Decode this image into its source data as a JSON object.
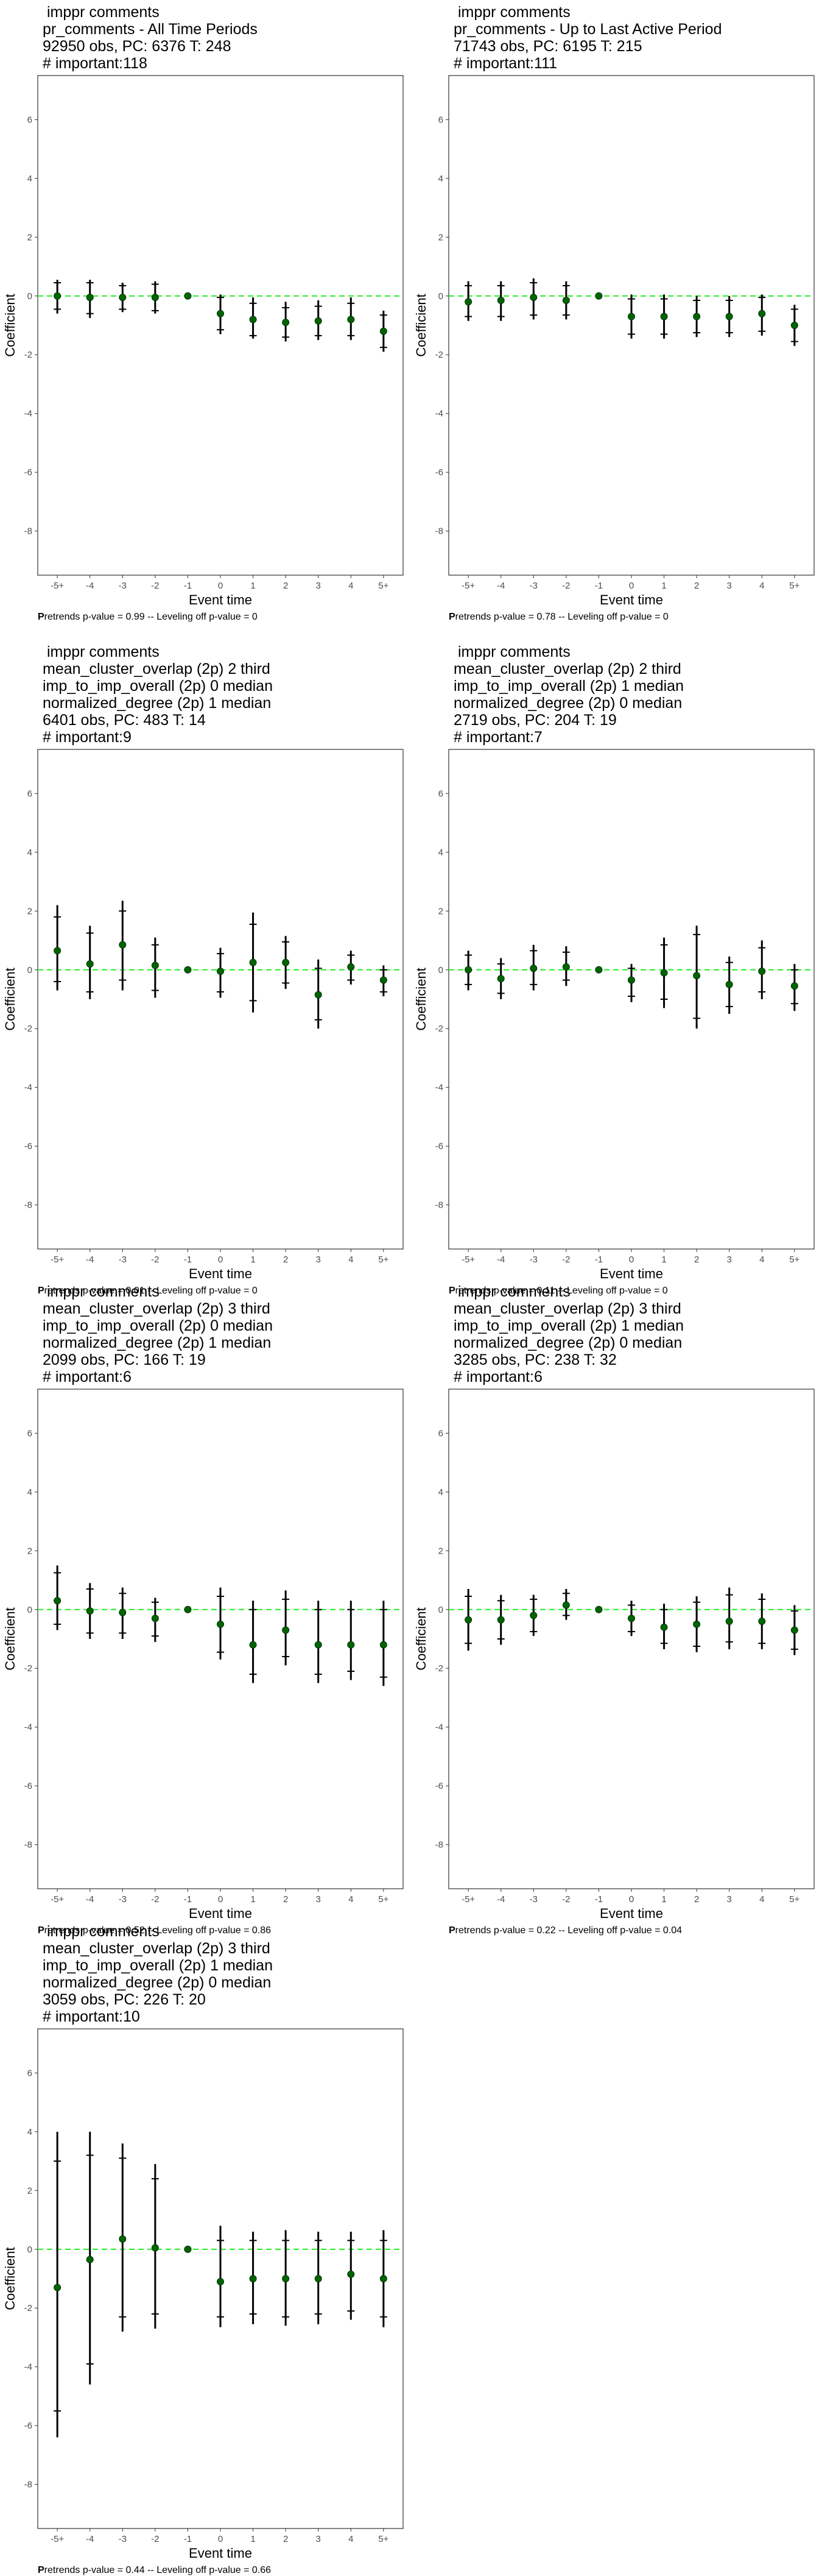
{
  "figure": {
    "panels": [
      {
        "title_lines": [
          " imppr comments",
          "pr_comments - All Time Periods",
          "92950 obs, PC: 6376 T: 248",
          "# important:118"
        ],
        "caption_lead": "P",
        "caption_rest": "retrends p-value = 0.99 -- Leveling off p-value = 0"
      },
      {
        "title_lines": [
          " imppr comments",
          "pr_comments - Up to Last Active Period",
          "71743 obs, PC: 6195 T: 215",
          "# important:111"
        ],
        "caption_lead": "P",
        "caption_rest": "retrends p-value = 0.78 -- Leveling off p-value = 0"
      },
      {
        "title_lines": [
          " imppr comments",
          "mean_cluster_overlap (2p) 2 third",
          "imp_to_imp_overall (2p) 0 median",
          "normalized_degree (2p) 1 median",
          "6401 obs, PC: 483 T: 14",
          "# important:9"
        ],
        "caption_lead": "P",
        "caption_rest": "retrends p-value = 0.01 -- Leveling off p-value = 0"
      },
      {
        "title_lines": [
          " imppr comments",
          "mean_cluster_overlap (2p) 2 third",
          "imp_to_imp_overall (2p) 1 median",
          "normalized_degree (2p) 0 median",
          "2719 obs, PC: 204 T: 19",
          "# important:7"
        ],
        "caption_lead": "P",
        "caption_rest": "retrends p-value = 0.11 -- Leveling off p-value = 0"
      },
      {
        "title_lines": [
          " imppr comments",
          "mean_cluster_overlap (2p) 3 third",
          "imp_to_imp_overall (2p) 0 median",
          "normalized_degree (2p) 1 median",
          "2099 obs, PC: 166 T: 19",
          "# important:6"
        ],
        "caption_lead": "P",
        "caption_rest": "retrends p-value = 0.52 -- Leveling off p-value = 0.86"
      },
      {
        "title_lines": [
          " imppr comments",
          "mean_cluster_overlap (2p) 3 third",
          "imp_to_imp_overall (2p) 1 median",
          "normalized_degree (2p) 0 median",
          "3285 obs, PC: 238 T: 32",
          "# important:6"
        ],
        "caption_lead": "P",
        "caption_rest": "retrends p-value = 0.22 -- Leveling off p-value = 0.04"
      },
      {
        "title_lines": [
          " imppr comments",
          "mean_cluster_overlap (2p) 3 third",
          "imp_to_imp_overall (2p) 1 median",
          "normalized_degree (2p) 0 median",
          "3059 obs, PC: 226 T: 20",
          "# important:10"
        ],
        "caption_lead": "P",
        "caption_rest": "retrends p-value = 0.44 -- Leveling off p-value = 0.66"
      }
    ]
  },
  "chart_data": [
    {
      "type": "scatter",
      "xlabel": "Event time",
      "ylabel": "Coefficient",
      "categories": [
        "-5+",
        "-4",
        "-3",
        "-2",
        "-1",
        "0",
        "1",
        "2",
        "3",
        "4",
        "5+"
      ],
      "yticks": [
        -8,
        -6,
        -4,
        -2,
        0,
        2,
        4,
        6
      ],
      "ylim": [
        -9.5,
        7.5
      ],
      "reference_line": 0,
      "grid": false,
      "estimates": [
        0,
        -0.05,
        -0.05,
        -0.05,
        0,
        -0.6,
        -0.8,
        -0.9,
        -0.85,
        -0.8,
        -1.2
      ],
      "ci95": [
        [
          -0.6,
          0.55
        ],
        [
          -0.75,
          0.55
        ],
        [
          -0.55,
          0.45
        ],
        [
          -0.6,
          0.5
        ],
        [
          0,
          0
        ],
        [
          -1.3,
          0.05
        ],
        [
          -1.45,
          -0.05
        ],
        [
          -1.55,
          -0.2
        ],
        [
          -1.5,
          -0.15
        ],
        [
          -1.5,
          -0.05
        ],
        [
          -1.9,
          -0.5
        ]
      ],
      "ci90": [
        [
          -0.45,
          0.45
        ],
        [
          -0.6,
          0.45
        ],
        [
          -0.45,
          0.35
        ],
        [
          -0.5,
          0.4
        ],
        [
          0,
          0
        ],
        [
          -1.15,
          -0.05
        ],
        [
          -1.35,
          -0.25
        ],
        [
          -1.4,
          -0.4
        ],
        [
          -1.35,
          -0.35
        ],
        [
          -1.35,
          -0.25
        ],
        [
          -1.75,
          -0.65
        ]
      ]
    },
    {
      "type": "scatter",
      "xlabel": "Event time",
      "ylabel": "Coefficient",
      "categories": [
        "-5+",
        "-4",
        "-3",
        "-2",
        "-1",
        "0",
        "1",
        "2",
        "3",
        "4",
        "5+"
      ],
      "yticks": [
        -8,
        -6,
        -4,
        -2,
        0,
        2,
        4,
        6
      ],
      "ylim": [
        -9.5,
        7.5
      ],
      "reference_line": 0,
      "grid": false,
      "estimates": [
        -0.2,
        -0.15,
        -0.05,
        -0.15,
        0,
        -0.7,
        -0.7,
        -0.7,
        -0.7,
        -0.6,
        -1.0
      ],
      "ci95": [
        [
          -0.85,
          0.5
        ],
        [
          -0.85,
          0.5
        ],
        [
          -0.8,
          0.6
        ],
        [
          -0.8,
          0.5
        ],
        [
          0,
          0
        ],
        [
          -1.45,
          0.05
        ],
        [
          -1.45,
          0.05
        ],
        [
          -1.4,
          0.0
        ],
        [
          -1.4,
          0.0
        ],
        [
          -1.35,
          0.05
        ],
        [
          -1.7,
          -0.3
        ]
      ],
      "ci90": [
        [
          -0.7,
          0.35
        ],
        [
          -0.7,
          0.35
        ],
        [
          -0.65,
          0.45
        ],
        [
          -0.65,
          0.35
        ],
        [
          0,
          0
        ],
        [
          -1.3,
          -0.1
        ],
        [
          -1.3,
          -0.1
        ],
        [
          -1.25,
          -0.15
        ],
        [
          -1.25,
          -0.15
        ],
        [
          -1.2,
          -0.05
        ],
        [
          -1.55,
          -0.45
        ]
      ]
    },
    {
      "type": "scatter",
      "xlabel": "Event time",
      "ylabel": "Coefficient",
      "categories": [
        "-5+",
        "-4",
        "-3",
        "-2",
        "-1",
        "0",
        "1",
        "2",
        "3",
        "4",
        "5+"
      ],
      "yticks": [
        -8,
        -6,
        -4,
        -2,
        0,
        2,
        4,
        6
      ],
      "ylim": [
        -9.5,
        7.5
      ],
      "reference_line": 0,
      "grid": false,
      "estimates": [
        0.65,
        0.2,
        0.85,
        0.15,
        0,
        -0.05,
        0.25,
        0.25,
        -0.85,
        0.1,
        -0.35
      ],
      "ci95": [
        [
          -0.7,
          2.2
        ],
        [
          -1.0,
          1.5
        ],
        [
          -0.7,
          2.35
        ],
        [
          -0.95,
          1.1
        ],
        [
          0,
          0
        ],
        [
          -0.95,
          0.75
        ],
        [
          -1.45,
          1.95
        ],
        [
          -0.65,
          1.15
        ],
        [
          -2.0,
          0.35
        ],
        [
          -0.5,
          0.65
        ],
        [
          -0.9,
          0.15
        ]
      ],
      "ci90": [
        [
          -0.4,
          1.8
        ],
        [
          -0.75,
          1.25
        ],
        [
          -0.35,
          2.0
        ],
        [
          -0.7,
          0.85
        ],
        [
          0,
          0
        ],
        [
          -0.75,
          0.55
        ],
        [
          -1.05,
          1.55
        ],
        [
          -0.45,
          0.95
        ],
        [
          -1.7,
          0.05
        ],
        [
          -0.35,
          0.5
        ],
        [
          -0.75,
          0.0
        ]
      ]
    },
    {
      "type": "scatter",
      "xlabel": "Event time",
      "ylabel": "Coefficient",
      "categories": [
        "-5+",
        "-4",
        "-3",
        "-2",
        "-1",
        "0",
        "1",
        "2",
        "3",
        "4",
        "5+"
      ],
      "yticks": [
        -8,
        -6,
        -4,
        -2,
        0,
        2,
        4,
        6
      ],
      "ylim": [
        -9.5,
        7.5
      ],
      "reference_line": 0,
      "grid": false,
      "estimates": [
        0,
        -0.3,
        0.05,
        0.1,
        0,
        -0.35,
        -0.1,
        -0.2,
        -0.5,
        -0.05,
        -0.55
      ],
      "ci95": [
        [
          -0.7,
          0.65
        ],
        [
          -1.0,
          0.4
        ],
        [
          -0.7,
          0.85
        ],
        [
          -0.55,
          0.8
        ],
        [
          0,
          0
        ],
        [
          -1.1,
          0.2
        ],
        [
          -1.3,
          1.1
        ],
        [
          -2.0,
          1.5
        ],
        [
          -1.5,
          0.45
        ],
        [
          -1.0,
          1.0
        ],
        [
          -1.4,
          0.2
        ]
      ],
      "ci90": [
        [
          -0.5,
          0.5
        ],
        [
          -0.8,
          0.2
        ],
        [
          -0.5,
          0.65
        ],
        [
          -0.35,
          0.6
        ],
        [
          0,
          0
        ],
        [
          -0.9,
          0.05
        ],
        [
          -1.0,
          0.85
        ],
        [
          -1.65,
          1.2
        ],
        [
          -1.25,
          0.25
        ],
        [
          -0.75,
          0.75
        ],
        [
          -1.15,
          0.0
        ]
      ]
    },
    {
      "type": "scatter",
      "xlabel": "Event time",
      "ylabel": "Coefficient",
      "categories": [
        "-5+",
        "-4",
        "-3",
        "-2",
        "-1",
        "0",
        "1",
        "2",
        "3",
        "4",
        "5+"
      ],
      "yticks": [
        -8,
        -6,
        -4,
        -2,
        0,
        2,
        4,
        6
      ],
      "ylim": [
        -9.5,
        7.5
      ],
      "reference_line": 0,
      "grid": false,
      "estimates": [
        0.3,
        -0.05,
        -0.1,
        -0.3,
        0,
        -0.5,
        -1.2,
        -0.7,
        -1.2,
        -1.2,
        -1.2
      ],
      "ci95": [
        [
          -0.7,
          1.5
        ],
        [
          -1.0,
          0.9
        ],
        [
          -1.0,
          0.75
        ],
        [
          -1.1,
          0.4
        ],
        [
          0,
          0
        ],
        [
          -1.7,
          0.75
        ],
        [
          -2.5,
          0.3
        ],
        [
          -1.9,
          0.65
        ],
        [
          -2.5,
          0.3
        ],
        [
          -2.4,
          0.3
        ],
        [
          -2.6,
          0.3
        ]
      ],
      "ci90": [
        [
          -0.5,
          1.25
        ],
        [
          -0.8,
          0.7
        ],
        [
          -0.8,
          0.55
        ],
        [
          -0.9,
          0.25
        ],
        [
          0,
          0
        ],
        [
          -1.45,
          0.45
        ],
        [
          -2.2,
          0.0
        ],
        [
          -1.6,
          0.35
        ],
        [
          -2.2,
          0.0
        ],
        [
          -2.1,
          0.0
        ],
        [
          -2.3,
          0.0
        ]
      ]
    },
    {
      "type": "scatter",
      "xlabel": "Event time",
      "ylabel": "Coefficient",
      "categories": [
        "-5+",
        "-4",
        "-3",
        "-2",
        "-1",
        "0",
        "1",
        "2",
        "3",
        "4",
        "5+"
      ],
      "yticks": [
        -8,
        -6,
        -4,
        -2,
        0,
        2,
        4,
        6
      ],
      "ylim": [
        -9.5,
        7.5
      ],
      "reference_line": 0,
      "grid": false,
      "estimates": [
        -0.35,
        -0.35,
        -0.2,
        0.15,
        0,
        -0.3,
        -0.6,
        -0.5,
        -0.4,
        -0.4,
        -0.7
      ],
      "ci95": [
        [
          -1.4,
          0.7
        ],
        [
          -1.2,
          0.5
        ],
        [
          -0.9,
          0.5
        ],
        [
          -0.35,
          0.7
        ],
        [
          0,
          0
        ],
        [
          -0.9,
          0.3
        ],
        [
          -1.35,
          0.2
        ],
        [
          -1.45,
          0.45
        ],
        [
          -1.35,
          0.75
        ],
        [
          -1.35,
          0.55
        ],
        [
          -1.55,
          0.15
        ]
      ],
      "ci90": [
        [
          -1.15,
          0.45
        ],
        [
          -1.0,
          0.3
        ],
        [
          -0.75,
          0.35
        ],
        [
          -0.2,
          0.55
        ],
        [
          0,
          0
        ],
        [
          -0.75,
          0.15
        ],
        [
          -1.15,
          0.0
        ],
        [
          -1.25,
          0.25
        ],
        [
          -1.1,
          0.5
        ],
        [
          -1.15,
          0.35
        ],
        [
          -1.35,
          -0.05
        ]
      ]
    },
    {
      "type": "scatter",
      "xlabel": "Event time",
      "ylabel": "Coefficient",
      "categories": [
        "-5+",
        "-4",
        "-3",
        "-2",
        "-1",
        "0",
        "1",
        "2",
        "3",
        "4",
        "5+"
      ],
      "yticks": [
        -8,
        -6,
        -4,
        -2,
        0,
        2,
        4,
        6
      ],
      "ylim": [
        -9.5,
        7.5
      ],
      "reference_line": 0,
      "grid": false,
      "estimates": [
        -1.3,
        -0.35,
        0.35,
        0.05,
        0,
        -1.1,
        -1.0,
        -1.0,
        -1.0,
        -0.85,
        -1.0
      ],
      "ci95": [
        [
          -6.4,
          4.0
        ],
        [
          -4.6,
          4.0
        ],
        [
          -2.8,
          3.6
        ],
        [
          -2.7,
          2.9
        ],
        [
          0,
          0
        ],
        [
          -2.65,
          0.8
        ],
        [
          -2.55,
          0.6
        ],
        [
          -2.6,
          0.65
        ],
        [
          -2.55,
          0.6
        ],
        [
          -2.4,
          0.6
        ],
        [
          -2.65,
          0.65
        ]
      ],
      "ci90": [
        [
          -5.5,
          3.0
        ],
        [
          -3.9,
          3.2
        ],
        [
          -2.3,
          3.1
        ],
        [
          -2.2,
          2.4
        ],
        [
          0,
          0
        ],
        [
          -2.3,
          0.3
        ],
        [
          -2.2,
          0.3
        ],
        [
          -2.3,
          0.3
        ],
        [
          -2.2,
          0.3
        ],
        [
          -2.1,
          0.3
        ],
        [
          -2.3,
          0.3
        ]
      ]
    }
  ]
}
